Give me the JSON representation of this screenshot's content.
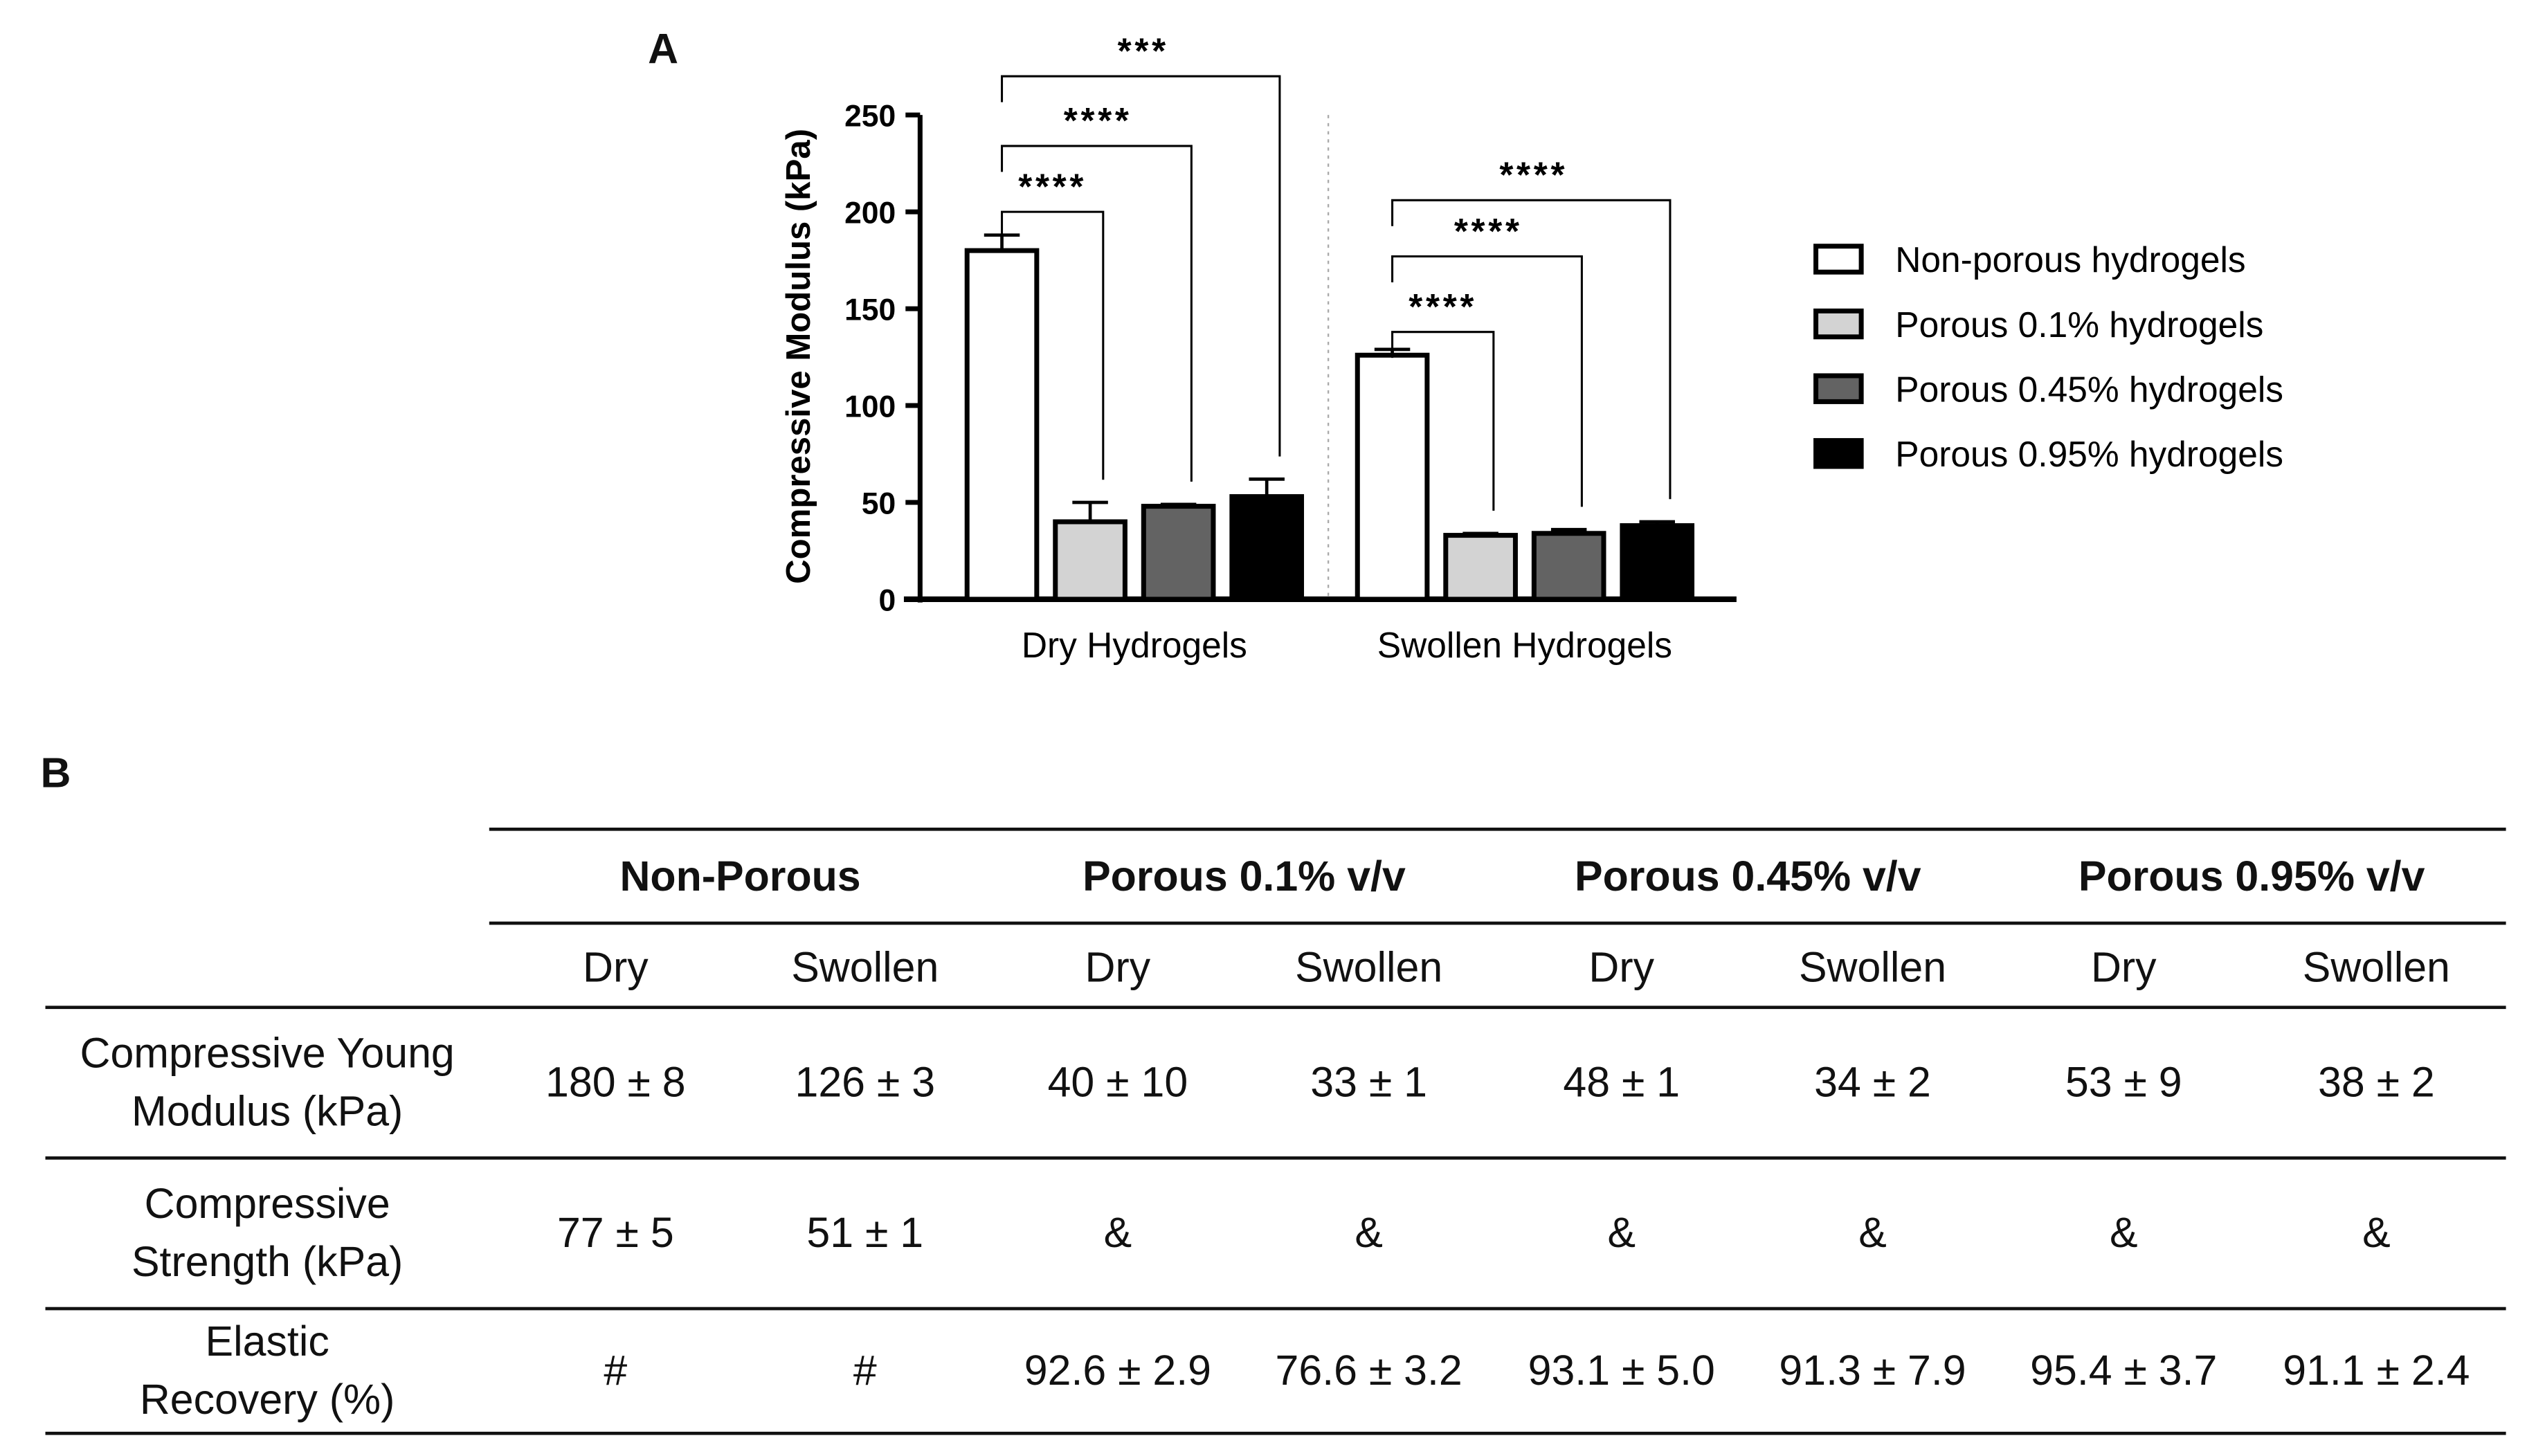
{
  "panels": {
    "a": "A",
    "b": "B"
  },
  "chart_data": {
    "type": "bar",
    "title": "",
    "xlabel": "",
    "ylabel": "Compressive Modulus (kPa)",
    "ylim": [
      0,
      250
    ],
    "yticks": [
      "0",
      "50",
      "100",
      "150",
      "200",
      "250"
    ],
    "categories": [
      "Dry Hydrogels",
      "Swollen Hydrogels"
    ],
    "series": [
      {
        "name": "Non-porous hydrogels",
        "color": "#ffffff",
        "values": [
          180,
          126
        ],
        "errors": [
          8,
          3
        ]
      },
      {
        "name": "Porous 0.1% hydrogels",
        "color": "#d3d3d3",
        "values": [
          40,
          33
        ],
        "errors": [
          10,
          1
        ]
      },
      {
        "name": "Porous 0.45% hydrogels",
        "color": "#636363",
        "values": [
          48,
          34
        ],
        "errors": [
          1,
          2
        ]
      },
      {
        "name": "Porous 0.95% hydrogels",
        "color": "#000000",
        "values": [
          53,
          38
        ],
        "errors": [
          9,
          2
        ]
      }
    ],
    "significance": [
      {
        "group": 0,
        "from": 0,
        "to": 1,
        "level": 200,
        "label": "****"
      },
      {
        "group": 0,
        "from": 0,
        "to": 2,
        "level": 234,
        "label": "****"
      },
      {
        "group": 0,
        "from": 0,
        "to": 3,
        "level": 270,
        "label": "***"
      },
      {
        "group": 1,
        "from": 0,
        "to": 1,
        "level": 138,
        "label": "****"
      },
      {
        "group": 1,
        "from": 0,
        "to": 2,
        "level": 177,
        "label": "****"
      },
      {
        "group": 1,
        "from": 0,
        "to": 3,
        "level": 206,
        "label": "****"
      }
    ],
    "legend_position": "right"
  },
  "table": {
    "groups": [
      "Non-Porous",
      "Porous 0.1% v/v",
      "Porous 0.45% v/v",
      "Porous 0.95% v/v"
    ],
    "subheaders": [
      "Dry",
      "Swollen",
      "Dry",
      "Swollen",
      "Dry",
      "Swollen",
      "Dry",
      "Swollen"
    ],
    "rows": [
      {
        "label": [
          "Compressive Young",
          "Modulus (kPa)"
        ],
        "values": [
          "180 ± 8",
          "126 ± 3",
          "40 ± 10",
          "33 ± 1",
          "48 ± 1",
          "34 ± 2",
          "53 ± 9",
          "38 ± 2"
        ]
      },
      {
        "label": [
          "Compressive",
          "Strength (kPa)"
        ],
        "values": [
          "77 ± 5",
          "51 ± 1",
          "&",
          "&",
          "&",
          "&",
          "&",
          "&"
        ]
      },
      {
        "label": [
          "Elastic",
          "Recovery (%)"
        ],
        "values": [
          "#",
          "#",
          "92.6 ± 2.9",
          "76.6 ± 3.2",
          "93.1 ± 5.0",
          "91.3 ± 7.9",
          "95.4 ± 3.7",
          "91.1 ± 2.4"
        ]
      }
    ]
  }
}
